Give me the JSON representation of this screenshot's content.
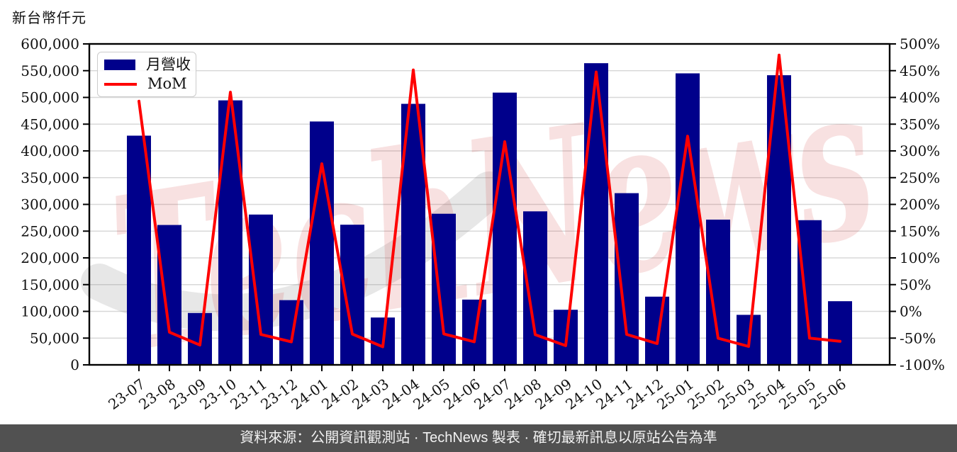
{
  "title": {
    "axis_unit_label": "新台幣仟元"
  },
  "watermark": {
    "text": "TechNews"
  },
  "footer": {
    "text": "資料來源：公開資訊觀測站 · TechNews 製表 · 確切最新訊息以原站公告為準",
    "bg_color": "#515151",
    "text_color": "#f2f2f2"
  },
  "colors": {
    "bar": "#00008B",
    "line": "#FF0000",
    "grid": "#D8D8D8",
    "axis": "#000000",
    "watermark_pink": "rgba(204,40,40,0.14)",
    "watermark_gray": "rgba(120,120,120,0.18)"
  },
  "chart_data": {
    "type": "bar+line combo",
    "title": "",
    "xlabel": "",
    "ylabel_left": "新台幣仟元",
    "ylabel_right": "%",
    "grid": "horizontal",
    "legend_position": "upper left",
    "categories": [
      "23-07",
      "23-08",
      "23-09",
      "23-10",
      "23-11",
      "23-12",
      "24-01",
      "24-02",
      "24-03",
      "24-04",
      "24-05",
      "24-06",
      "24-07",
      "24-08",
      "24-09",
      "24-10",
      "24-11",
      "24-12",
      "25-01",
      "25-02",
      "25-03",
      "25-04",
      "25-05",
      "25-06"
    ],
    "series": [
      {
        "name": "月營收",
        "type": "bar",
        "axis": "left",
        "unit": "新台幣仟元",
        "values": [
          428500,
          261500,
          97000,
          494500,
          281000,
          121000,
          455000,
          262000,
          88500,
          488000,
          282500,
          122000,
          509000,
          287000,
          103000,
          564000,
          321000,
          127500,
          545000,
          271500,
          93500,
          541500,
          270500,
          119000
        ]
      },
      {
        "name": "MoM",
        "type": "line",
        "axis": "right",
        "unit": "%",
        "values": [
          393.0,
          -39.0,
          -62.9,
          409.8,
          -43.2,
          -56.9,
          276.0,
          -42.4,
          -66.2,
          451.4,
          -42.1,
          -56.8,
          317.2,
          -43.6,
          -64.1,
          447.6,
          -43.1,
          -60.3,
          327.5,
          -50.2,
          -65.6,
          479.1,
          -50.0,
          -56.0
        ]
      }
    ],
    "left_axis": {
      "min": 0,
      "max": 600000,
      "step": 50000,
      "tick_labels": [
        "0",
        "50,000",
        "100,000",
        "150,000",
        "200,000",
        "250,000",
        "300,000",
        "350,000",
        "400,000",
        "450,000",
        "500,000",
        "550,000",
        "600,000"
      ]
    },
    "right_axis": {
      "min": -100,
      "max": 500,
      "step": 50,
      "tick_labels": [
        "-100%",
        "-50%",
        "0%",
        "50%",
        "100%",
        "150%",
        "200%",
        "250%",
        "300%",
        "350%",
        "400%",
        "450%",
        "500%"
      ]
    }
  }
}
